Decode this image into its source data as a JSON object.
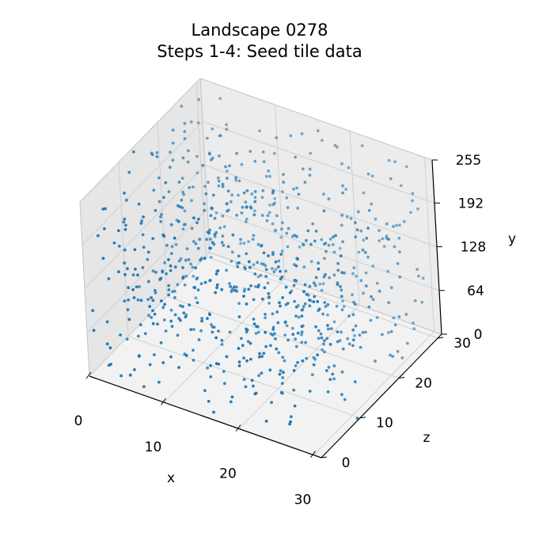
{
  "chart_data": {
    "type": "scatter",
    "projection": "3d",
    "title_lines": [
      "Landscape 0278",
      "Steps 1-4: Seed tile data"
    ],
    "xlabel": "x",
    "ylabel": "y",
    "zlabel": "z",
    "xlim": [
      0,
      31
    ],
    "ylim": [
      0,
      255
    ],
    "zlim": [
      0,
      31
    ],
    "x_ticks": [
      "0",
      "10",
      "20",
      "30"
    ],
    "y_ticks": [
      "0",
      "64",
      "128",
      "192",
      "255"
    ],
    "z_ticks": [
      "0",
      "10",
      "20",
      "30"
    ],
    "grid": true,
    "legend": "none",
    "marker_color": "#1f77b4",
    "pane_color": "#f2f2f2",
    "grid_color": "#d0d0d0",
    "point_count": 800,
    "point_distribution": "uniform random over x 0-31, z 0-31, y 0-255"
  }
}
